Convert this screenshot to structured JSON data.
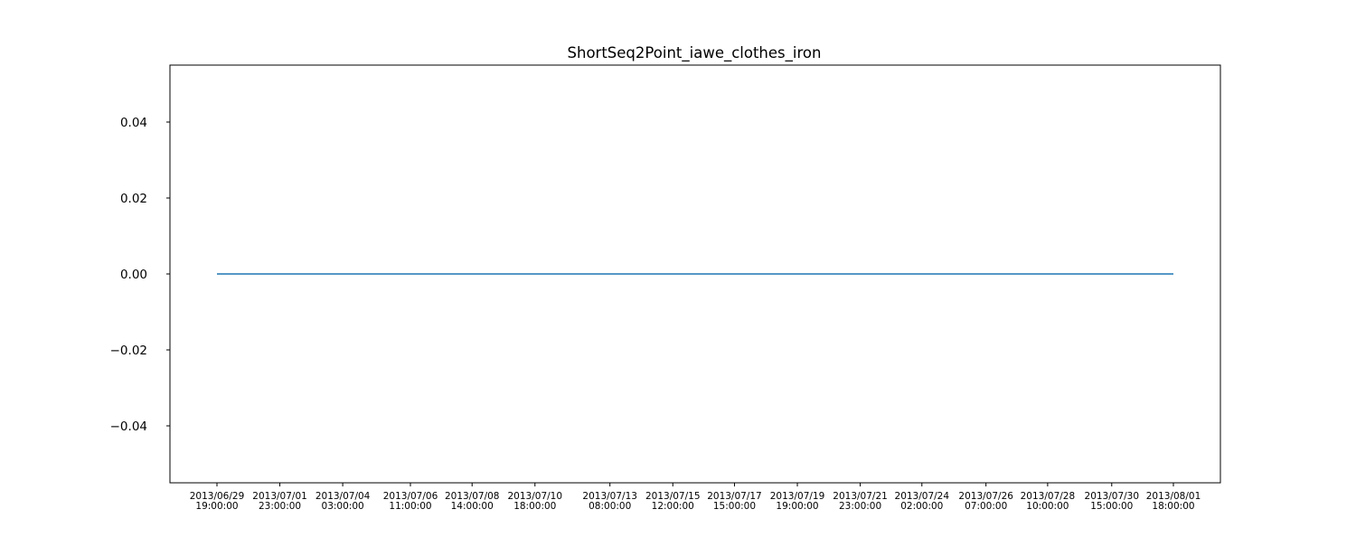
{
  "chart_data": {
    "type": "line",
    "title": "ShortSeq2Point_iawe_clothes_iron",
    "xlabel": "",
    "ylabel": "",
    "grid": false,
    "legend": null,
    "ylim": [
      -0.055,
      0.055
    ],
    "yticks": [
      0.04,
      0.02,
      0.0,
      -0.02,
      -0.04
    ],
    "ytick_labels": [
      "0.04",
      "0.02",
      "0.00",
      "−0.02",
      "−0.04"
    ],
    "xticks": [
      {
        "date": "2013/06/29",
        "time": "19:00:00"
      },
      {
        "date": "2013/07/01",
        "time": "23:00:00"
      },
      {
        "date": "2013/07/04",
        "time": "03:00:00"
      },
      {
        "date": "2013/07/06",
        "time": "11:00:00"
      },
      {
        "date": "2013/07/08",
        "time": "14:00:00"
      },
      {
        "date": "2013/07/10",
        "time": "18:00:00"
      },
      {
        "date": "2013/07/13",
        "time": "08:00:00"
      },
      {
        "date": "2013/07/15",
        "time": "12:00:00"
      },
      {
        "date": "2013/07/17",
        "time": "15:00:00"
      },
      {
        "date": "2013/07/19",
        "time": "19:00:00"
      },
      {
        "date": "2013/07/21",
        "time": "23:00:00"
      },
      {
        "date": "2013/07/24",
        "time": "02:00:00"
      },
      {
        "date": "2013/07/26",
        "time": "07:00:00"
      },
      {
        "date": "2013/07/28",
        "time": "10:00:00"
      },
      {
        "date": "2013/07/30",
        "time": "15:00:00"
      },
      {
        "date": "2013/08/01",
        "time": "18:00:00"
      }
    ],
    "series": [
      {
        "color": "#1f77b4",
        "x": [
          "2013/06/29 19:00:00",
          "2013/08/01 18:00:00"
        ],
        "y": [
          0.0,
          0.0
        ]
      }
    ]
  }
}
